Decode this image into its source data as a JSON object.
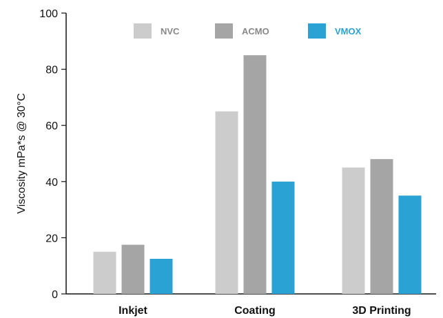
{
  "chart_data": {
    "type": "bar",
    "title": "",
    "xlabel": "",
    "ylabel": "Viscosity mPa*s @ 30°C",
    "categories": [
      "Inkjet",
      "Coating",
      "3D Printing"
    ],
    "series": [
      {
        "name": "NVC",
        "values": [
          15,
          65,
          45
        ],
        "color": "#cccccc",
        "label_color": "#888888"
      },
      {
        "name": "ACMO",
        "values": [
          17.5,
          85,
          48
        ],
        "color": "#a5a5a5",
        "label_color": "#888888"
      },
      {
        "name": "VMOX",
        "values": [
          12.5,
          40,
          35
        ],
        "color": "#2aa2d4",
        "label_color": "#2aa2d4"
      }
    ],
    "ylim": [
      0,
      100
    ],
    "yticks": [
      0,
      20,
      40,
      60,
      80,
      100
    ],
    "grid": false,
    "legend_position": "top"
  }
}
